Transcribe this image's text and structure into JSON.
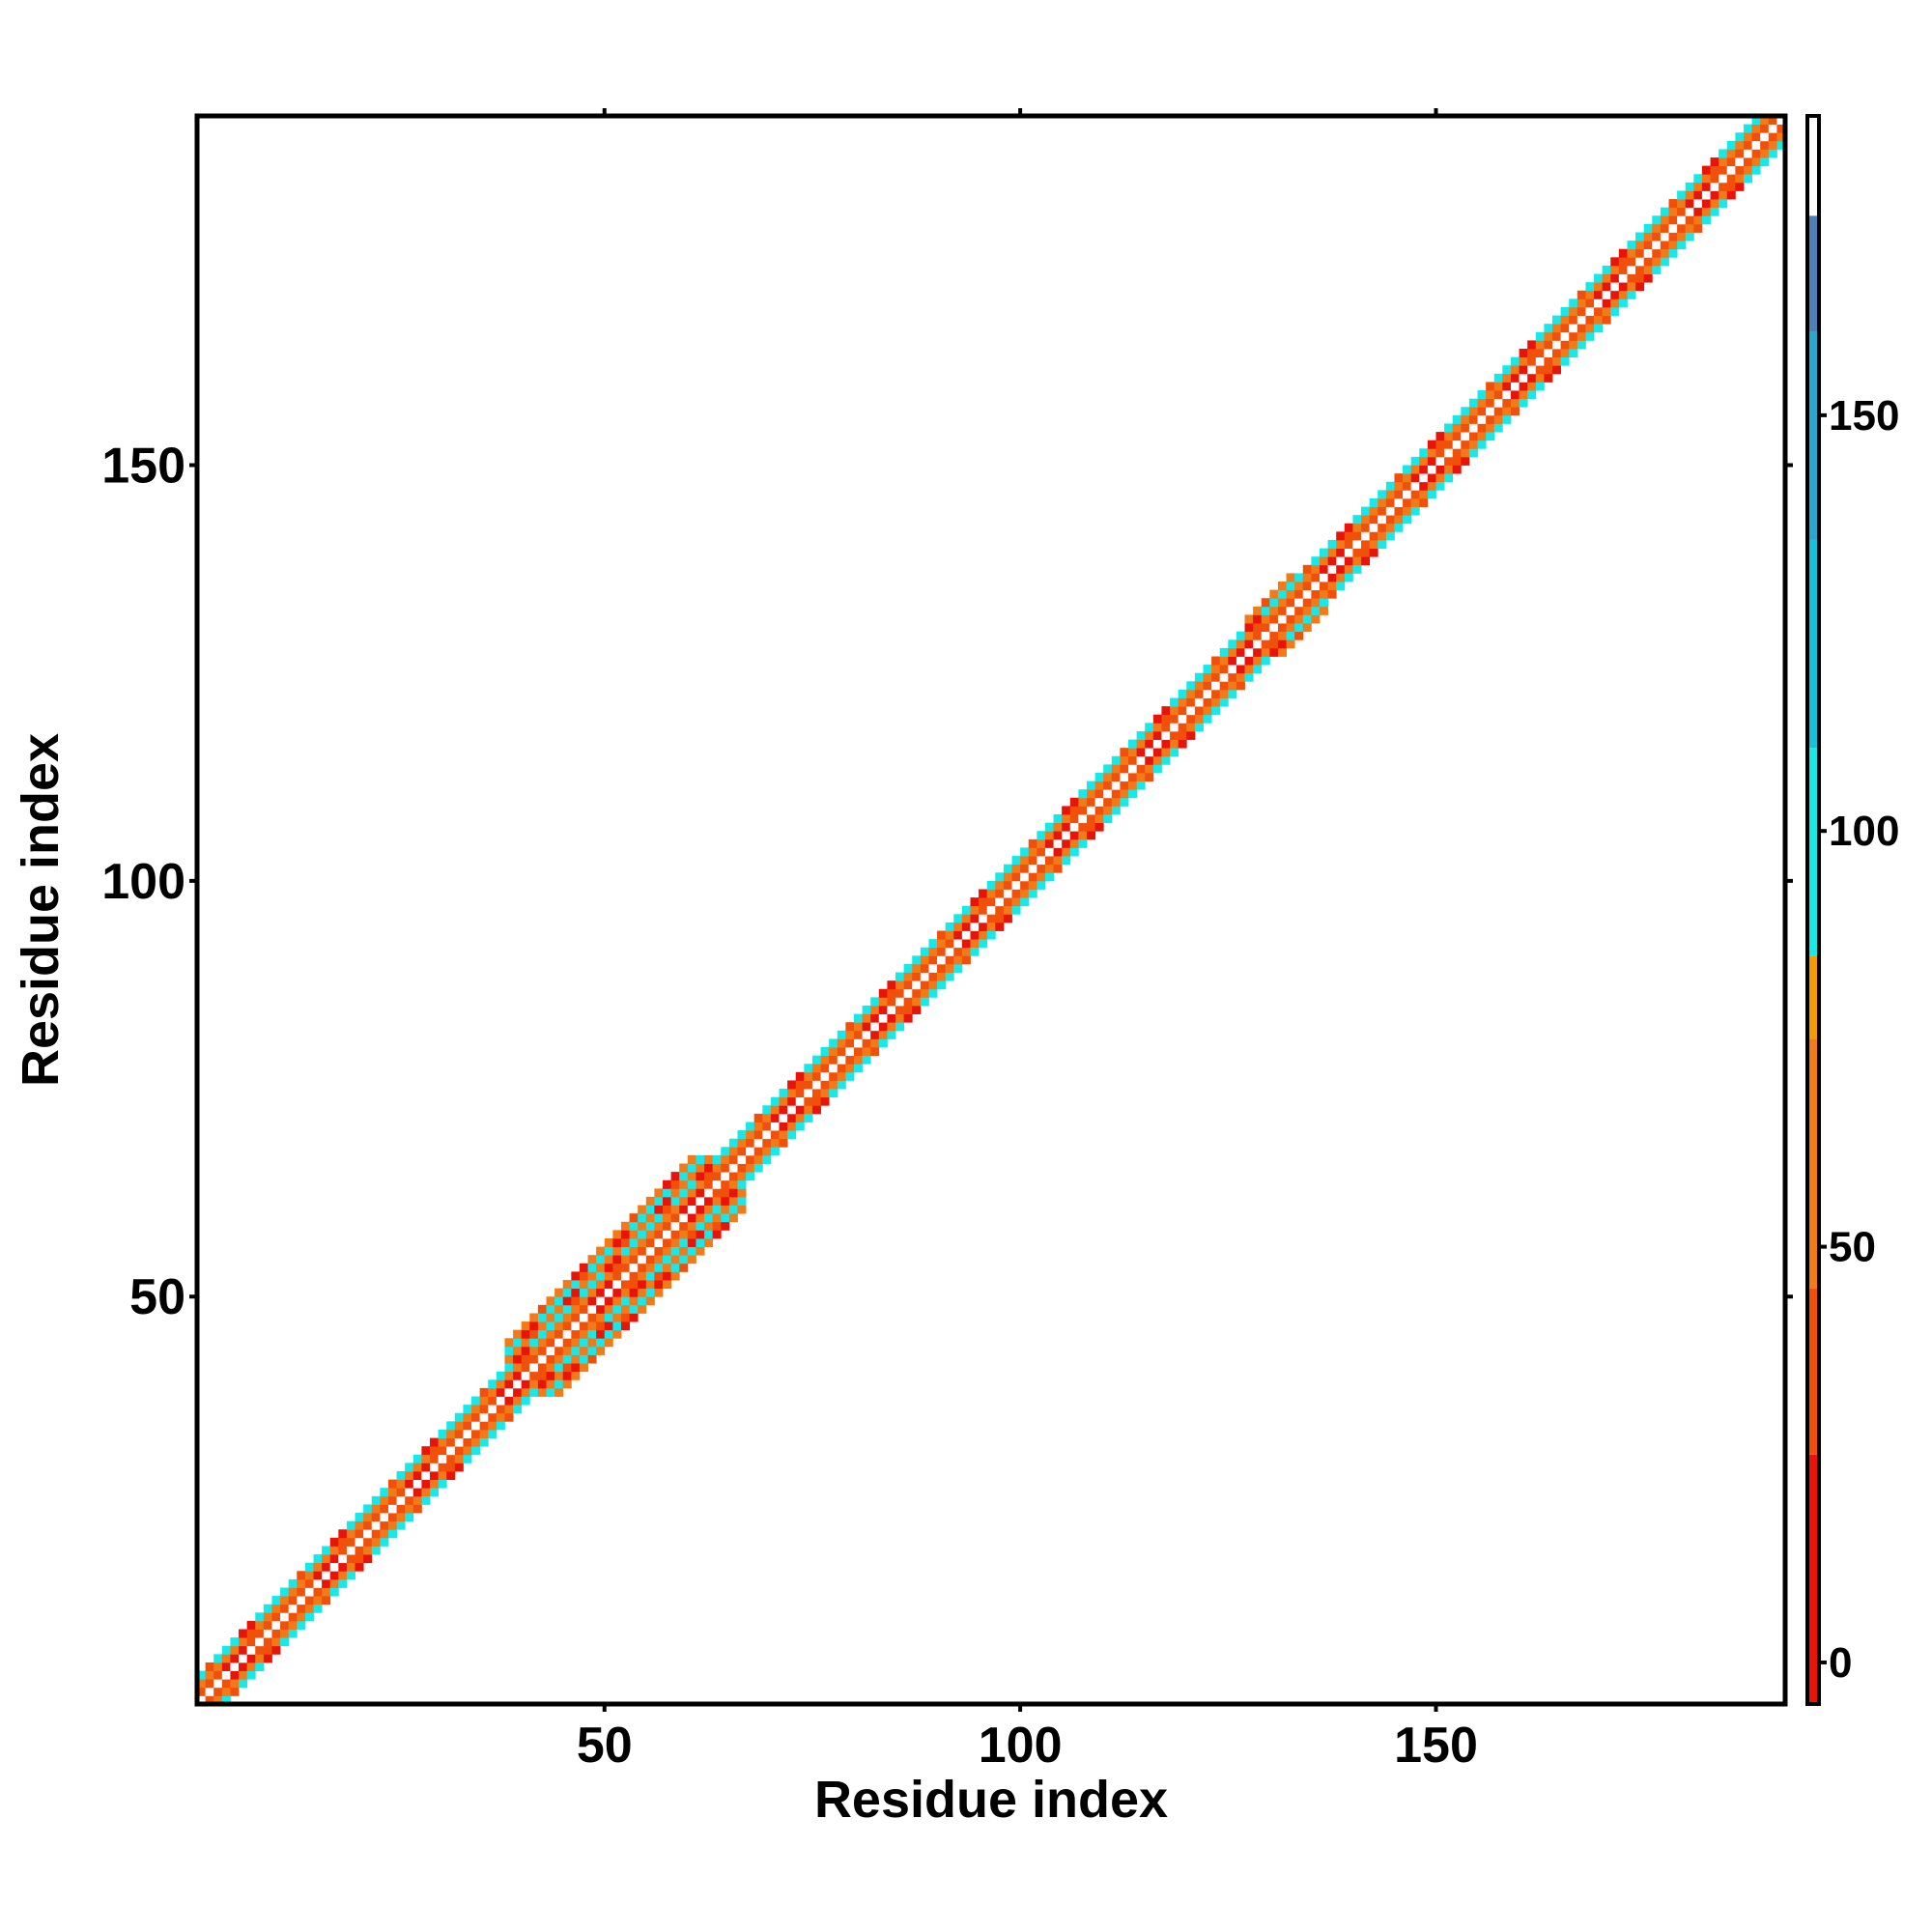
{
  "chart_data": {
    "type": "heatmap",
    "title": "",
    "xlabel": "Residue index",
    "ylabel": "Residue index",
    "xlim": [
      1,
      191
    ],
    "ylim": [
      1,
      191
    ],
    "xticks": [
      50,
      100,
      150
    ],
    "yticks": [
      50,
      100,
      150
    ],
    "grid": false,
    "matrix_size": 191,
    "band": {
      "description_values": "symmetric band of non-white cells along the main diagonal; diagonal cells are white (highest value)",
      "base_half_width": 3,
      "wide_segments": [
        {
          "from": 38,
          "to": 66,
          "half_width": 6
        },
        {
          "from": 127,
          "to": 136,
          "half_width": 4
        }
      ]
    },
    "band_values_by_offset": [
      190,
      30,
      60,
      95,
      60,
      95,
      60
    ],
    "colorbar": {
      "range": [
        -5,
        186
      ],
      "ticks": [
        0,
        50,
        100,
        150
      ],
      "tick_labels": [
        "0",
        "50",
        "100",
        "150"
      ],
      "colors": [
        {
          "from": -5,
          "to": 25,
          "color": "#e8140a"
        },
        {
          "from": 25,
          "to": 45,
          "color": "#f0500a"
        },
        {
          "from": 45,
          "to": 75,
          "color": "#f37a18"
        },
        {
          "from": 75,
          "to": 85,
          "color": "#f59a00"
        },
        {
          "from": 85,
          "to": 110,
          "color": "#17e8e8"
        },
        {
          "from": 110,
          "to": 135,
          "color": "#14c2dc"
        },
        {
          "from": 135,
          "to": 160,
          "color": "#2aa7cf"
        },
        {
          "from": 160,
          "to": 174,
          "color": "#4e7fb8"
        },
        {
          "from": 174,
          "to": 186,
          "color": "#ffffff"
        }
      ]
    },
    "accent_colors": {
      "red": "#e8140a",
      "orange": "#f37a18",
      "cyan": "#17e8e8",
      "white": "#ffffff"
    }
  }
}
